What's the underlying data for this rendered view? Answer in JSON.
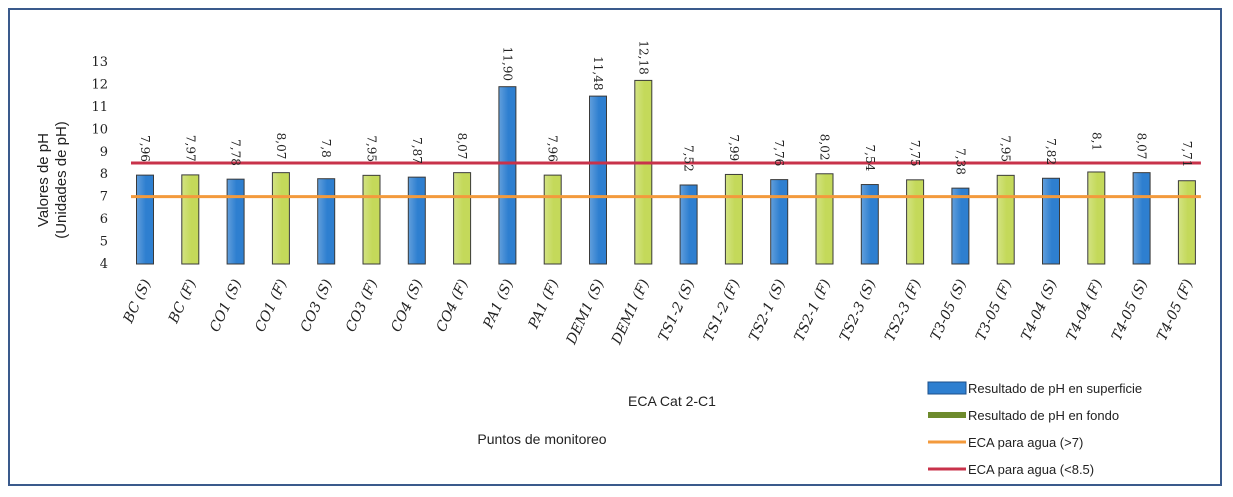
{
  "chart_data": {
    "type": "bar",
    "title": "",
    "xlabel": "Puntos de monitoreo",
    "ylabel_line1": "Valores de pH",
    "ylabel_line2": "(Unidades de pH)",
    "annotation": "ECA Cat 2-C1",
    "ylim": [
      4,
      13
    ],
    "yticks": [
      "4",
      "5",
      "6",
      "7",
      "8",
      "9",
      "10",
      "11",
      "12",
      "13"
    ],
    "categories": [
      "BC (S)",
      "BC (F)",
      "CO1 (S)",
      "CO1 (F)",
      "CO3 (S)",
      "CO3 (F)",
      "CO4 (S)",
      "CO4 (F)",
      "PA1 (S)",
      "PA1 (F)",
      "DEM1 (S)",
      "DEM1 (F)",
      "TS1-2 (S)",
      "TS1-2 (F)",
      "TS2-1 (S)",
      "TS2-1 (F)",
      "TS2-3 (S)",
      "TS2-3 (F)",
      "T3-05 (S)",
      "T3-05 (F)",
      "T4-04 (S)",
      "T4-04 (F)",
      "T4-05 (S)",
      "T4-05 (F)"
    ],
    "values": [
      7.96,
      7.97,
      7.78,
      8.07,
      7.8,
      7.95,
      7.87,
      8.07,
      11.9,
      7.96,
      11.48,
      12.18,
      7.52,
      7.99,
      7.76,
      8.02,
      7.54,
      7.75,
      7.38,
      7.95,
      7.82,
      8.1,
      8.07,
      7.71
    ],
    "data_labels": [
      "7,96",
      "7,97",
      "7,78",
      "8,07",
      "7,8",
      "7,95",
      "7,87",
      "8,07",
      "11,90",
      "7,96",
      "11,48",
      "12,18",
      "7,52",
      "7,99",
      "7,76",
      "8,02",
      "7,54",
      "7,75",
      "7,38",
      "7,95",
      "7,82",
      "8,1",
      "8,07",
      "7,71"
    ],
    "bar_series": [
      "superficie",
      "fondo",
      "superficie",
      "fondo",
      "superficie",
      "fondo",
      "superficie",
      "fondo",
      "superficie",
      "fondo",
      "superficie",
      "fondo",
      "superficie",
      "fondo",
      "superficie",
      "fondo",
      "superficie",
      "fondo",
      "superficie",
      "fondo",
      "superficie",
      "fondo",
      "superficie",
      "fondo"
    ],
    "series": [
      {
        "key": "superficie",
        "name": "Resultado de pH en superficie",
        "color": "#2e7fd0",
        "kind": "bar"
      },
      {
        "key": "fondo",
        "name": "Resultado de pH en fondo",
        "color": "#c4d95a",
        "kind": "bar"
      }
    ],
    "reference_lines": [
      {
        "name": "ECA para agua (>7)",
        "value": 7,
        "color": "#f39a3c"
      },
      {
        "name": "ECA para agua (<8.5)",
        "value": 8.5,
        "color": "#c8324a"
      }
    ],
    "legend_markers": [
      "#2e7fd0",
      "#6d8a2c",
      "#f39a3c",
      "#c8324a"
    ],
    "legend_position": "bottom-right",
    "grid": false
  }
}
